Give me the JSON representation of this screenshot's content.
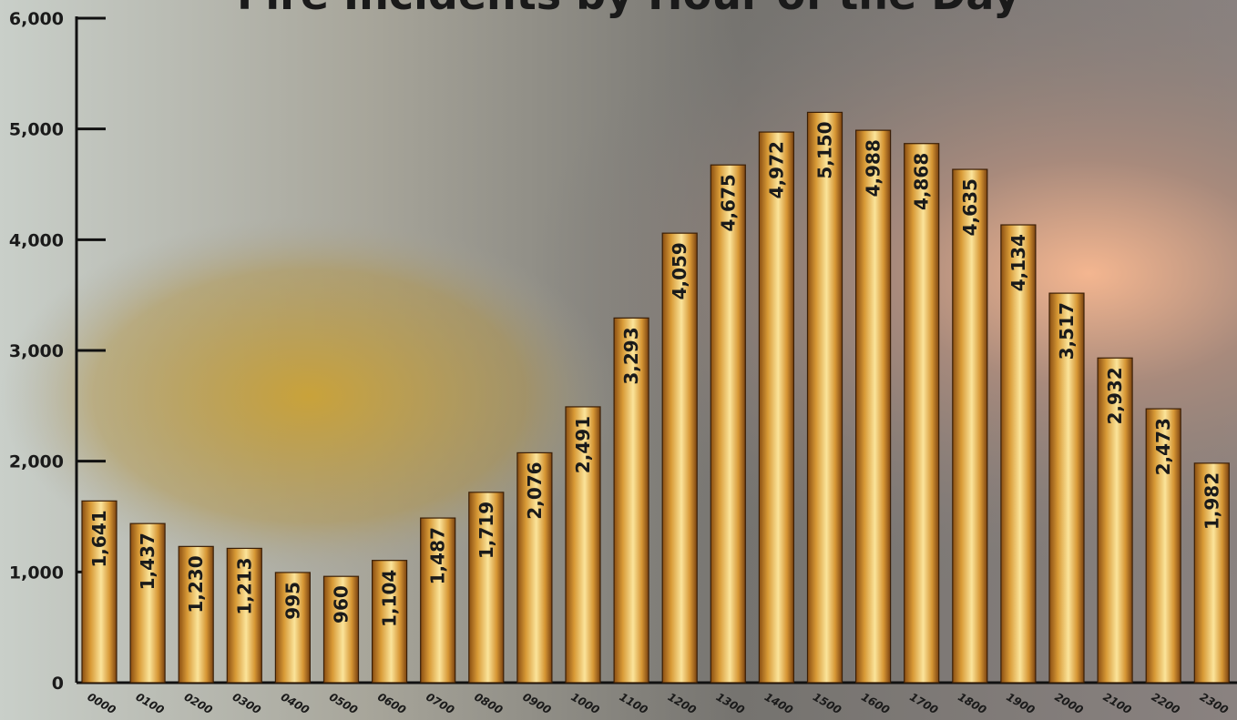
{
  "chart_data": {
    "type": "bar",
    "title": "Fire Incidents by Hour of the Day",
    "categories": [
      "0000",
      "0100",
      "0200",
      "0300",
      "0400",
      "0500",
      "0600",
      "0700",
      "0800",
      "0900",
      "1000",
      "1100",
      "1200",
      "1300",
      "1400",
      "1500",
      "1600",
      "1700",
      "1800",
      "1900",
      "2000",
      "2100",
      "2200",
      "2300"
    ],
    "values": [
      1641,
      1437,
      1230,
      1213,
      995,
      960,
      1104,
      1487,
      1719,
      2076,
      2491,
      3293,
      4059,
      4675,
      4972,
      5150,
      4988,
      4868,
      4635,
      4134,
      3517,
      2932,
      2473,
      1982
    ],
    "value_labels": [
      "1,641",
      "1,437",
      "1,230",
      "1,213",
      "995",
      "960",
      "1,104",
      "1,487",
      "1,719",
      "2,076",
      "2,491",
      "3,293",
      "4,059",
      "4,675",
      "4,972",
      "5,150",
      "4,988",
      "4,868",
      "4,635",
      "4,134",
      "3,517",
      "2,932",
      "2,473",
      "1,982"
    ],
    "color": "#e0a63a",
    "ylim": [
      0,
      6000
    ],
    "yticks": [
      0,
      {
        "value": 1000,
        "label": "1,000"
      },
      {
        "value": 2000,
        "label": "2,000"
      },
      {
        "value": 3000,
        "label": "3,000"
      },
      {
        "value": 4000,
        "label": "4,000"
      },
      {
        "value": 5000,
        "label": "5,000"
      },
      {
        "value": 6000,
        "label": "6,000"
      }
    ]
  }
}
